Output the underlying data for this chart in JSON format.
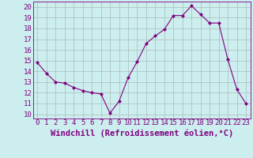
{
  "x": [
    0,
    1,
    2,
    3,
    4,
    5,
    6,
    7,
    8,
    9,
    10,
    11,
    12,
    13,
    14,
    15,
    16,
    17,
    18,
    19,
    20,
    21,
    22,
    23
  ],
  "y": [
    14.8,
    13.8,
    13.0,
    12.9,
    12.5,
    12.2,
    12.0,
    11.9,
    10.1,
    11.2,
    13.4,
    14.9,
    16.6,
    17.3,
    17.9,
    19.2,
    19.2,
    20.1,
    19.3,
    18.5,
    18.5,
    15.1,
    12.3,
    11.0
  ],
  "line_color": "#800080",
  "marker": "D",
  "marker_size": 2.0,
  "bg_color": "#cceeee",
  "grid_color": "#aabbbb",
  "ylabel_ticks": [
    10,
    11,
    12,
    13,
    14,
    15,
    16,
    17,
    18,
    19,
    20
  ],
  "xlabel_ticks": [
    0,
    1,
    2,
    3,
    4,
    5,
    6,
    7,
    8,
    9,
    10,
    11,
    12,
    13,
    14,
    15,
    16,
    17,
    18,
    19,
    20,
    21,
    22,
    23
  ],
  "xlabel": "Windchill (Refroidissement éolien,°C)",
  "ylim": [
    9.6,
    20.5
  ],
  "xlim": [
    -0.5,
    23.5
  ],
  "tick_fontsize": 6.5,
  "label_fontsize": 7.5
}
